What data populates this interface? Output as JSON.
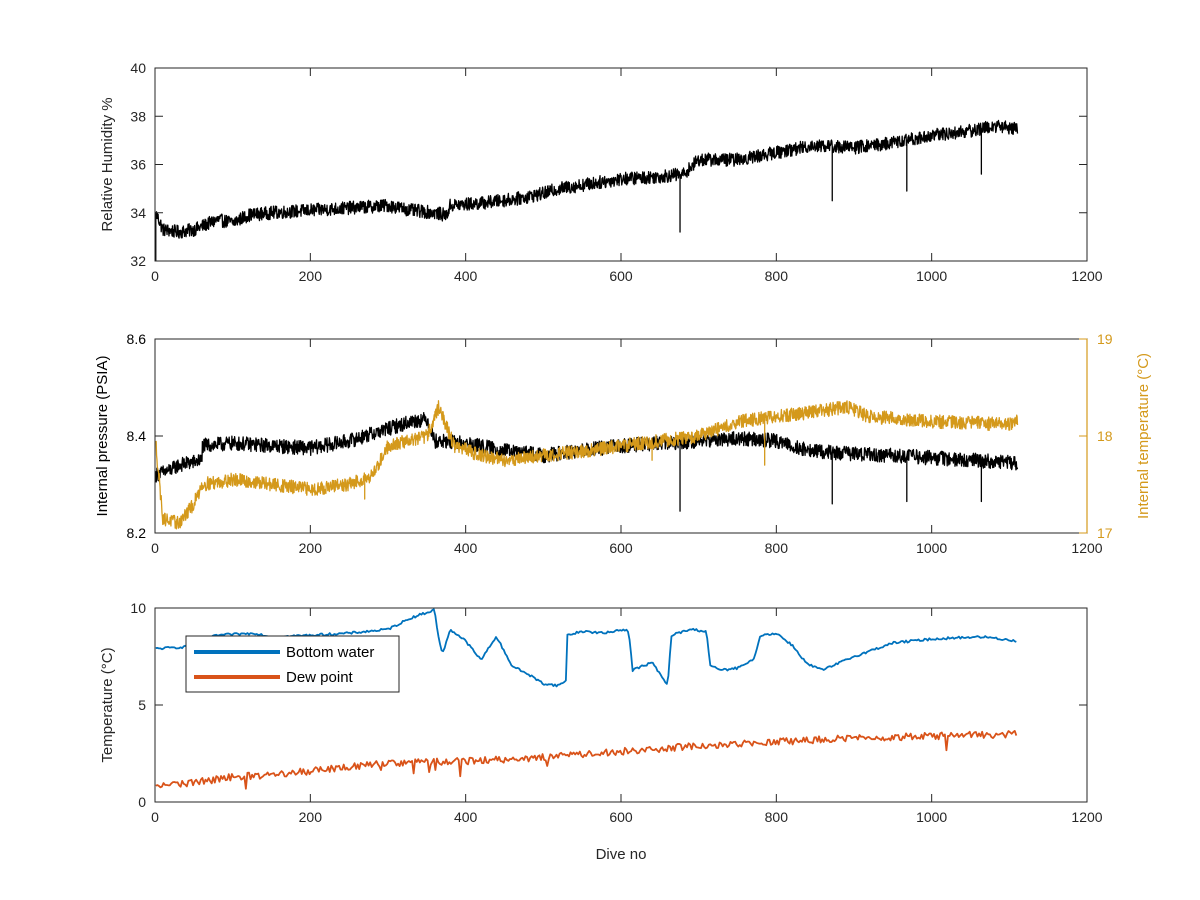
{
  "figure": {
    "background": "#ffffff"
  },
  "chart_data": [
    {
      "type": "line",
      "panel": "top",
      "title": "",
      "xlabel": "",
      "ylabel": "Relative Humidity %",
      "xlim": [
        0,
        1200
      ],
      "ylim": [
        32,
        40
      ],
      "xticks": [
        0,
        200,
        400,
        600,
        800,
        1000,
        1200
      ],
      "yticks": [
        32,
        34,
        36,
        38,
        40
      ],
      "grid": false,
      "noisy": true,
      "series": [
        {
          "color": "#000000",
          "anchors": [
            [
              1,
              34.0
            ],
            [
              10,
              33.3
            ],
            [
              30,
              33.2
            ],
            [
              50,
              33.3
            ],
            [
              80,
              33.7
            ],
            [
              100,
              33.6
            ],
            [
              120,
              33.9
            ],
            [
              150,
              34.0
            ],
            [
              200,
              34.1
            ],
            [
              250,
              34.2
            ],
            [
              300,
              34.3
            ],
            [
              330,
              34.1
            ],
            [
              360,
              34.0
            ],
            [
              375,
              33.9
            ],
            [
              380,
              34.3
            ],
            [
              420,
              34.4
            ],
            [
              470,
              34.6
            ],
            [
              500,
              34.8
            ],
            [
              520,
              35.0
            ],
            [
              560,
              35.2
            ],
            [
              600,
              35.4
            ],
            [
              650,
              35.5
            ],
            [
              680,
              35.6
            ],
            [
              700,
              36.2
            ],
            [
              750,
              36.2
            ],
            [
              800,
              36.5
            ],
            [
              850,
              36.8
            ],
            [
              900,
              36.7
            ],
            [
              950,
              36.9
            ],
            [
              1000,
              37.2
            ],
            [
              1050,
              37.4
            ],
            [
              1080,
              37.6
            ],
            [
              1110,
              37.5
            ]
          ],
          "amp": 0.55,
          "spikes": [
            [
              1,
              32.0
            ],
            [
              676,
              33.2
            ],
            [
              872,
              34.5
            ],
            [
              968,
              34.9
            ],
            [
              1064,
              35.6
            ]
          ]
        }
      ]
    },
    {
      "type": "line",
      "panel": "middle",
      "title": "",
      "xlabel": "",
      "ylabel": "Internal pressure (PSIA)",
      "ylabel_right": "Internal temperature (°C)",
      "xlim": [
        0,
        1200
      ],
      "ylim": [
        8.2,
        8.6
      ],
      "ylim_right": [
        17,
        19
      ],
      "xticks": [
        0,
        200,
        400,
        600,
        800,
        1000,
        1200
      ],
      "yticks": [
        8.2,
        8.4,
        8.6
      ],
      "yticks_right": [
        17,
        18,
        19
      ],
      "grid": false,
      "noisy": true,
      "series": [
        {
          "axis": "left",
          "color": "#000000",
          "anchors": [
            [
              1,
              8.32
            ],
            [
              20,
              8.33
            ],
            [
              30,
              8.34
            ],
            [
              60,
              8.35
            ],
            [
              61,
              8.38
            ],
            [
              100,
              8.385
            ],
            [
              150,
              8.38
            ],
            [
              200,
              8.375
            ],
            [
              250,
              8.39
            ],
            [
              290,
              8.41
            ],
            [
              330,
              8.43
            ],
            [
              350,
              8.435
            ],
            [
              360,
              8.39
            ],
            [
              400,
              8.385
            ],
            [
              450,
              8.37
            ],
            [
              500,
              8.36
            ],
            [
              550,
              8.37
            ],
            [
              600,
              8.38
            ],
            [
              650,
              8.385
            ],
            [
              700,
              8.39
            ],
            [
              750,
              8.395
            ],
            [
              800,
              8.39
            ],
            [
              840,
              8.37
            ],
            [
              880,
              8.365
            ],
            [
              950,
              8.36
            ],
            [
              1000,
              8.355
            ],
            [
              1050,
              8.35
            ],
            [
              1110,
              8.345
            ]
          ],
          "amp": 0.03,
          "spikes": [
            [
              676,
              8.245
            ],
            [
              872,
              8.26
            ],
            [
              968,
              8.265
            ],
            [
              1064,
              8.265
            ]
          ]
        },
        {
          "axis": "right",
          "color": "#d4991b",
          "anchors": [
            [
              1,
              17.9
            ],
            [
              10,
              17.15
            ],
            [
              30,
              17.1
            ],
            [
              50,
              17.3
            ],
            [
              60,
              17.5
            ],
            [
              100,
              17.55
            ],
            [
              150,
              17.5
            ],
            [
              200,
              17.45
            ],
            [
              250,
              17.5
            ],
            [
              280,
              17.6
            ],
            [
              300,
              17.9
            ],
            [
              350,
              18.0
            ],
            [
              365,
              18.3
            ],
            [
              385,
              17.9
            ],
            [
              420,
              17.8
            ],
            [
              450,
              17.75
            ],
            [
              500,
              17.8
            ],
            [
              560,
              17.85
            ],
            [
              600,
              17.9
            ],
            [
              650,
              17.95
            ],
            [
              700,
              18.0
            ],
            [
              750,
              18.15
            ],
            [
              800,
              18.2
            ],
            [
              850,
              18.25
            ],
            [
              890,
              18.3
            ],
            [
              920,
              18.2
            ],
            [
              1000,
              18.15
            ],
            [
              1100,
              18.12
            ],
            [
              1110,
              18.15
            ]
          ],
          "amp": 0.14,
          "spikes": [
            [
              270,
              17.35
            ],
            [
              640,
              17.75
            ],
            [
              785,
              17.7
            ]
          ]
        }
      ]
    },
    {
      "type": "line",
      "panel": "bottom",
      "title": "",
      "xlabel": "Dive no",
      "ylabel": "Temperature (°C)",
      "xlim": [
        0,
        1200
      ],
      "ylim": [
        0,
        10
      ],
      "xticks": [
        0,
        200,
        400,
        600,
        800,
        1000,
        1200
      ],
      "yticks": [
        0,
        5,
        10
      ],
      "grid": false,
      "legend": {
        "placement": "top-left",
        "entries": [
          "Bottom water",
          "Dew point"
        ]
      },
      "series": [
        {
          "name": "Bottom water",
          "color": "#0072bd",
          "noise": 0.06,
          "anchors": [
            [
              1,
              7.9
            ],
            [
              40,
              8.0
            ],
            [
              80,
              8.6
            ],
            [
              130,
              8.7
            ],
            [
              150,
              8.5
            ],
            [
              200,
              8.6
            ],
            [
              250,
              8.7
            ],
            [
              300,
              8.9
            ],
            [
              330,
              9.5
            ],
            [
              360,
              9.9
            ],
            [
              365,
              8.5
            ],
            [
              370,
              7.6
            ],
            [
              380,
              8.9
            ],
            [
              400,
              8.3
            ],
            [
              420,
              7.3
            ],
            [
              430,
              8.0
            ],
            [
              440,
              8.5
            ],
            [
              460,
              7.0
            ],
            [
              480,
              6.6
            ],
            [
              500,
              6.1
            ],
            [
              520,
              6.0
            ],
            [
              530,
              6.3
            ],
            [
              531,
              8.6
            ],
            [
              550,
              8.8
            ],
            [
              580,
              8.7
            ],
            [
              600,
              8.9
            ],
            [
              610,
              8.8
            ],
            [
              615,
              6.8
            ],
            [
              640,
              7.2
            ],
            [
              660,
              6.0
            ],
            [
              665,
              8.6
            ],
            [
              690,
              8.9
            ],
            [
              710,
              8.8
            ],
            [
              715,
              7.0
            ],
            [
              730,
              6.8
            ],
            [
              750,
              6.9
            ],
            [
              770,
              7.3
            ],
            [
              780,
              8.6
            ],
            [
              800,
              8.7
            ],
            [
              820,
              8.1
            ],
            [
              840,
              7.1
            ],
            [
              860,
              6.8
            ],
            [
              900,
              7.5
            ],
            [
              950,
              8.2
            ],
            [
              1000,
              8.4
            ],
            [
              1050,
              8.5
            ],
            [
              1070,
              8.5
            ],
            [
              1110,
              8.3
            ]
          ]
        },
        {
          "name": "Dew point",
          "color": "#d95319",
          "noise": 0.18,
          "anchors": [
            [
              1,
              0.8
            ],
            [
              50,
              1.0
            ],
            [
              100,
              1.3
            ],
            [
              150,
              1.4
            ],
            [
              200,
              1.6
            ],
            [
              300,
              2.0
            ],
            [
              400,
              2.1
            ],
            [
              500,
              2.3
            ],
            [
              600,
              2.6
            ],
            [
              700,
              2.9
            ],
            [
              800,
              3.1
            ],
            [
              900,
              3.3
            ],
            [
              1000,
              3.4
            ],
            [
              1110,
              3.5
            ]
          ]
        }
      ]
    }
  ]
}
